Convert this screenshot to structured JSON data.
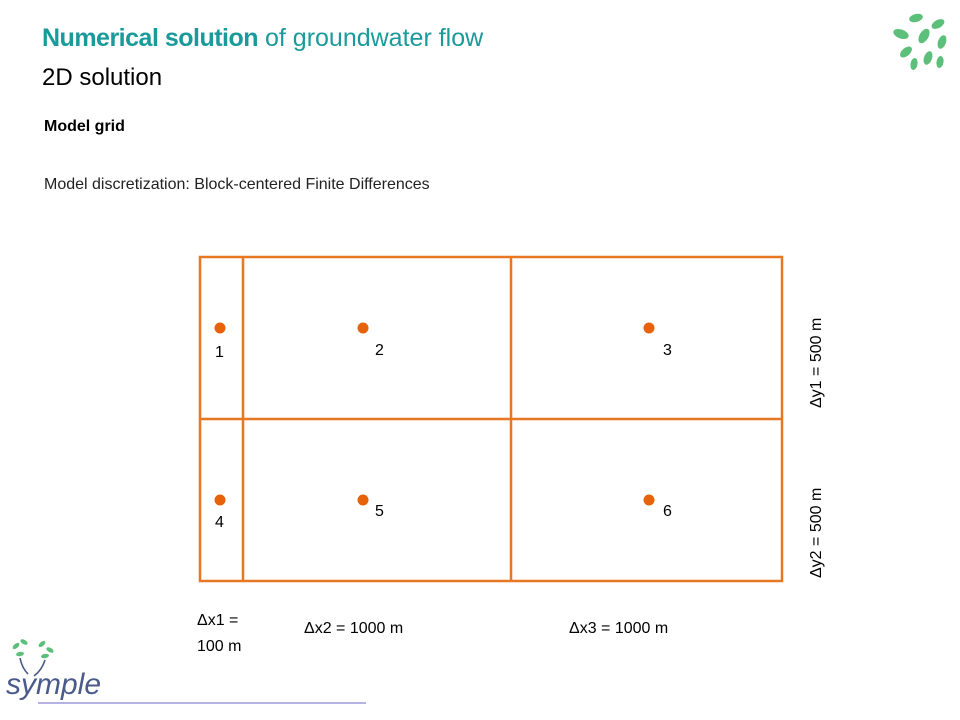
{
  "header": {
    "title_bold": "Numerical solution",
    "title_rest": " of groundwater flow",
    "subtitle": "2D solution"
  },
  "section_title": "Model grid",
  "description": "Model discretization: Block-centered Finite Differences",
  "grid": {
    "nodes": [
      "1",
      "2",
      "3",
      "4",
      "5",
      "6"
    ],
    "dx_labels": {
      "dx1_line1": "Δx1 =",
      "dx1_line2": "100 m",
      "dx2": "Δx2 = 1000 m",
      "dx3": "Δx3 = 1000 m"
    },
    "dy_labels": {
      "dy1": "Δy1 = 500 m",
      "dy2": "Δy2 = 500 m"
    },
    "line_color": "#e87722",
    "node_color": "#e8620a"
  },
  "logo": {
    "name": "symple",
    "text_color": "#4a5a8a",
    "leaf_color": "#5cbf7a"
  }
}
